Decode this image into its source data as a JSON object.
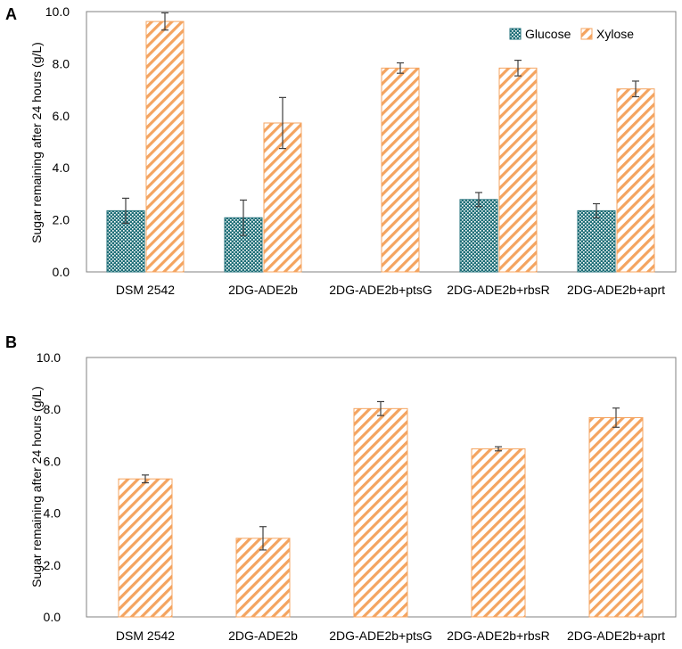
{
  "colors": {
    "glucose": "#1f6f78",
    "xylose": "#f4a460",
    "axis": "#808080",
    "error_bar": "#404040",
    "text": "#000000"
  },
  "chart_data": [
    {
      "panel": "A",
      "type": "bar",
      "ylabel": "Sugar remaining after 24 hours (g/L)",
      "ylim": [
        0,
        10
      ],
      "yticks": [
        "0.0",
        "2.0",
        "4.0",
        "6.0",
        "8.0",
        "10.0"
      ],
      "ytick_values": [
        0,
        2,
        4,
        6,
        8,
        10
      ],
      "categories": [
        "DSM 2542",
        "2DG-ADE2b",
        "2DG-ADE2b+ptsG",
        "2DG-ADE2b+rbsR",
        "2DG-ADE2b+aprt"
      ],
      "legend_position": "top-right",
      "series": [
        {
          "name": "Glucose",
          "pattern": "checker",
          "values": [
            2.35,
            2.08,
            0.0,
            2.78,
            2.35
          ],
          "errors": [
            0.48,
            0.68,
            0.0,
            0.27,
            0.27
          ]
        },
        {
          "name": "Xylose",
          "pattern": "hatch",
          "values": [
            9.62,
            5.72,
            7.83,
            7.83,
            7.03
          ],
          "errors": [
            0.33,
            0.98,
            0.2,
            0.3,
            0.3
          ]
        }
      ]
    },
    {
      "panel": "B",
      "type": "bar",
      "ylabel": "Sugar remaining after 24 hours (g/L)",
      "ylim": [
        0,
        10
      ],
      "yticks": [
        "0.0",
        "2.0",
        "4.0",
        "6.0",
        "8.0",
        "10.0"
      ],
      "ytick_values": [
        0,
        2,
        4,
        6,
        8,
        10
      ],
      "categories": [
        "DSM 2542",
        "2DG-ADE2b",
        "2DG-ADE2b+ptsG",
        "2DG-ADE2b+rbsR",
        "2DG-ADE2b+aprt"
      ],
      "series": [
        {
          "name": "Xylose",
          "pattern": "hatch",
          "values": [
            5.32,
            3.03,
            8.03,
            6.48,
            7.68
          ],
          "errors": [
            0.15,
            0.45,
            0.27,
            0.08,
            0.37
          ]
        }
      ]
    }
  ]
}
